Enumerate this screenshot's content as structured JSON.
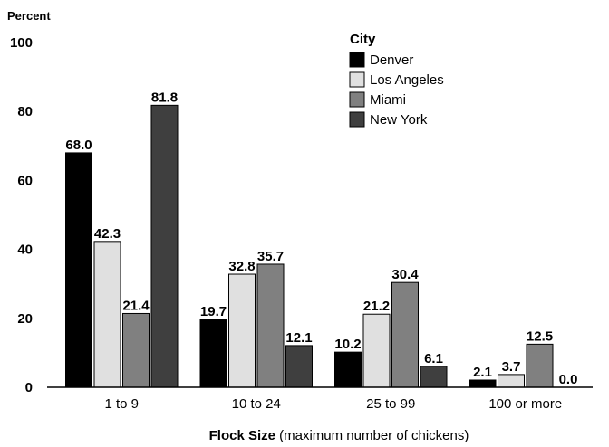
{
  "chart_data": {
    "type": "bar",
    "ylabel": "Percent",
    "xlabel_bold": "Flock Size",
    "xlabel_rest": " (maximum number of chickens)",
    "ylim": [
      0,
      100
    ],
    "yticks": [
      0,
      20,
      40,
      60,
      80,
      100
    ],
    "grid": false,
    "legend": {
      "title": "City",
      "placement": "top-right"
    },
    "categories": [
      "1 to 9",
      "10 to 24",
      "25 to 99",
      "100 or more"
    ],
    "series": [
      {
        "name": "Denver",
        "color": "#000000",
        "values": [
          68.0,
          19.7,
          10.2,
          2.1
        ],
        "labels": [
          "68.0",
          "19.7",
          "10.2",
          "2.1"
        ]
      },
      {
        "name": "Los Angeles",
        "color": "#e0e0e0",
        "values": [
          42.3,
          32.8,
          21.2,
          3.7
        ],
        "labels": [
          "42.3",
          "32.8",
          "21.2",
          "3.7"
        ]
      },
      {
        "name": "Miami",
        "color": "#808080",
        "values": [
          21.4,
          35.7,
          30.4,
          12.5
        ],
        "labels": [
          "21.4",
          "35.7",
          "30.4",
          "12.5"
        ]
      },
      {
        "name": "New York",
        "color": "#3f3f3f",
        "values": [
          81.8,
          12.1,
          6.1,
          0.0
        ],
        "labels": [
          "81.8",
          "12.1",
          "6.1",
          "0.0"
        ]
      }
    ]
  }
}
